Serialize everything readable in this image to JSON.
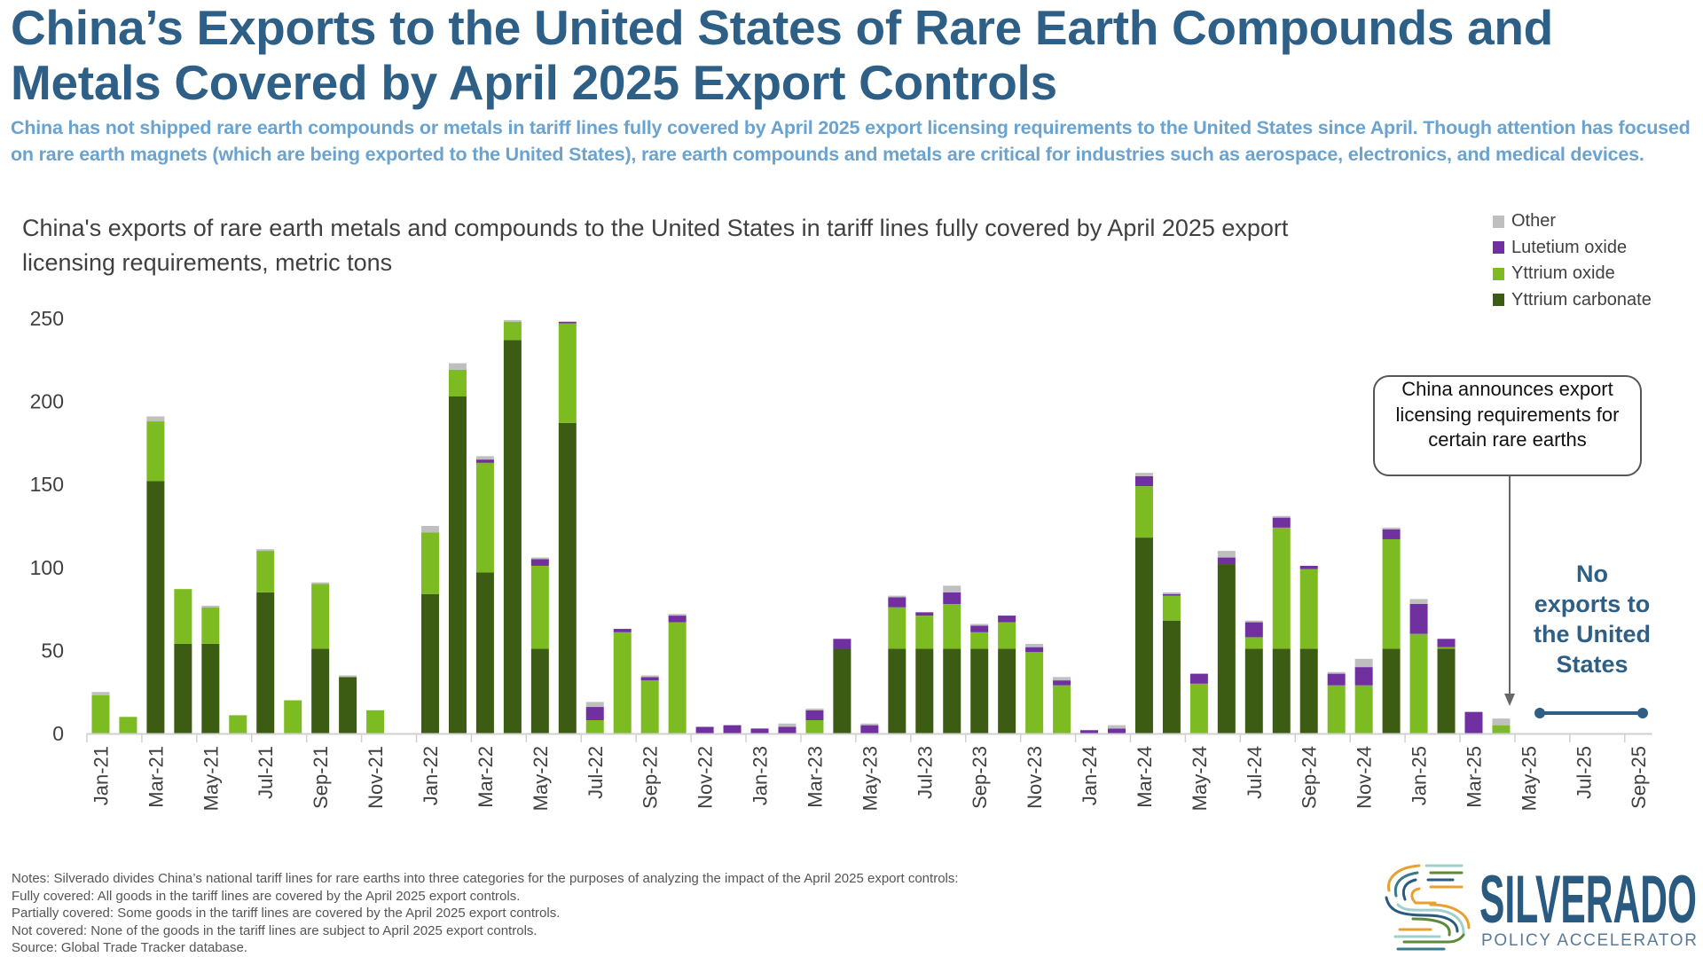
{
  "title": "China’s Exports to the United States of Rare Earth Compounds and Metals Covered by April 2025 Export Controls",
  "subtitle": "China has not shipped rare earth compounds or metals in tariff lines fully covered by April 2025 export licensing requirements to the United States since April. Though attention has focused on rare earth magnets (which are being exported to the United States), rare earth compounds and metals are critical for industries such as aerospace, electronics, and medical devices.",
  "annotations": {
    "callout": "China announces export licensing requirements for certain rare earths",
    "no_exports": "No exports to the United States"
  },
  "notes": [
    "Notes: Silverado divides China’s national tariff lines for rare earths into three categories for the purposes of analyzing the impact of the April 2025 export controls:",
    "Fully covered: All goods in the tariff lines are covered by the April 2025 export controls.",
    "Partially covered: Some goods in the tariff lines are covered by the April 2025 export controls.",
    "Not covered: None of the goods in the tariff lines are subject to April 2025 export controls.",
    "Source: Global Trade Tracker database."
  ],
  "logo": {
    "name": "SILVERADO",
    "tagline": "POLICY ACCELERATOR",
    "colors": [
      "#2a5a80",
      "#e8a030",
      "#5e8a3a",
      "#9fd0cc",
      "#3a7a8a"
    ]
  },
  "chart_data": {
    "type": "bar",
    "stacked": true,
    "title": "China's exports of rare earth metals and compounds to the United States in tariff lines fully covered by April 2025 export licensing requirements, metric tons",
    "xlabel": "",
    "ylabel": "",
    "ylim": [
      0,
      250
    ],
    "yticks": [
      0,
      50,
      100,
      150,
      200,
      250
    ],
    "grid": false,
    "legend_placement": "top-right",
    "categories": [
      "Jan-21",
      "Feb-21",
      "Mar-21",
      "Apr-21",
      "May-21",
      "Jun-21",
      "Jul-21",
      "Aug-21",
      "Sep-21",
      "Oct-21",
      "Nov-21",
      "Dec-21",
      "Jan-22",
      "Feb-22",
      "Mar-22",
      "Apr-22",
      "May-22",
      "Jun-22",
      "Jul-22",
      "Aug-22",
      "Sep-22",
      "Oct-22",
      "Nov-22",
      "Dec-22",
      "Jan-23",
      "Feb-23",
      "Mar-23",
      "Apr-23",
      "May-23",
      "Jun-23",
      "Jul-23",
      "Aug-23",
      "Sep-23",
      "Oct-23",
      "Nov-23",
      "Dec-23",
      "Jan-24",
      "Feb-24",
      "Mar-24",
      "Apr-24",
      "May-24",
      "Jun-24",
      "Jul-24",
      "Aug-24",
      "Sep-24",
      "Oct-24",
      "Nov-24",
      "Dec-24",
      "Jan-25",
      "Feb-25",
      "Mar-25",
      "Apr-25",
      "May-25",
      "Jun-25",
      "Jul-25",
      "Aug-25",
      "Sep-25"
    ],
    "series": [
      {
        "name": "Yttrium carbonate",
        "color": "#3d5c13",
        "values": [
          0,
          0,
          152,
          54,
          54,
          0,
          85,
          0,
          51,
          34,
          0,
          0,
          84,
          203,
          97,
          237,
          51,
          187,
          0,
          0,
          0,
          0,
          0,
          0,
          0,
          0,
          0,
          51,
          0,
          51,
          51,
          51,
          51,
          51,
          0,
          0,
          0,
          0,
          118,
          68,
          0,
          102,
          51,
          51,
          51,
          0,
          0,
          51,
          0,
          51,
          0,
          0,
          0,
          0,
          0,
          0,
          0
        ]
      },
      {
        "name": "Yttrium oxide",
        "color": "#7dbb23",
        "values": [
          23,
          10,
          36,
          33,
          22,
          11,
          25,
          20,
          39,
          0,
          14,
          0,
          37,
          16,
          66,
          11,
          50,
          60,
          8,
          61,
          32,
          67,
          0,
          0,
          0,
          0,
          8,
          0,
          0,
          25,
          20,
          27,
          10,
          16,
          49,
          29,
          0,
          0,
          31,
          15,
          30,
          0,
          7,
          73,
          48,
          29,
          29,
          66,
          60,
          1,
          0,
          5,
          0,
          0,
          0,
          0,
          0
        ]
      },
      {
        "name": "Lutetium oxide",
        "color": "#7030a0",
        "values": [
          0,
          0,
          0,
          0,
          0,
          0,
          0,
          0,
          0,
          0,
          0,
          0,
          0,
          0,
          2,
          0,
          4,
          1,
          8,
          2,
          2,
          4,
          4,
          5,
          3,
          4,
          6,
          6,
          5,
          6,
          2,
          7,
          4,
          4,
          3,
          3,
          2,
          3,
          6,
          1,
          6,
          4,
          9,
          6,
          2,
          7,
          11,
          6,
          18,
          5,
          13,
          0,
          0,
          0,
          0,
          0,
          0
        ]
      },
      {
        "name": "Other",
        "color": "#bfbfbf",
        "values": [
          2,
          0,
          3,
          0,
          1,
          0,
          1,
          0,
          1,
          1,
          0,
          0,
          4,
          4,
          2,
          1,
          1,
          0,
          3,
          0,
          1,
          1,
          0,
          0,
          0,
          2,
          1,
          0,
          1,
          1,
          0,
          4,
          1,
          0,
          2,
          2,
          0,
          2,
          2,
          1,
          0,
          4,
          1,
          1,
          0,
          1,
          5,
          1,
          3,
          0,
          0,
          4,
          0,
          0,
          0,
          0,
          0
        ]
      }
    ]
  }
}
